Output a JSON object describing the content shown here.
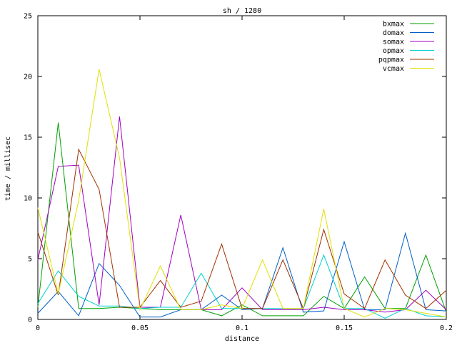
{
  "chart_data": {
    "type": "line",
    "title": "sh / 1280",
    "xlabel": "distance",
    "ylabel": "time / millisec",
    "xlim": [
      0,
      0.2
    ],
    "ylim": [
      0,
      25
    ],
    "xticks": [
      0,
      0.05,
      0.1,
      0.15,
      0.2
    ],
    "xtick_labels": [
      "0",
      "0.05",
      "0.1",
      "0.15",
      "0.2"
    ],
    "yticks": [
      0,
      5,
      10,
      15,
      20,
      25
    ],
    "ytick_labels": [
      "0",
      "5",
      "10",
      "15",
      "20",
      "25"
    ],
    "grid": false,
    "legend_position": "top-right",
    "x": [
      0,
      0.01,
      0.02,
      0.03,
      0.04,
      0.05,
      0.06,
      0.07,
      0.08,
      0.09,
      0.1,
      0.11,
      0.12,
      0.13,
      0.14,
      0.15,
      0.16,
      0.17,
      0.18,
      0.19,
      0.2
    ],
    "series": [
      {
        "name": "bxmax",
        "color": "#00a000",
        "values": [
          1.0,
          16.2,
          0.9,
          0.9,
          1.0,
          0.9,
          0.8,
          0.8,
          0.8,
          0.3,
          1.2,
          0.3,
          0.3,
          0.3,
          1.9,
          0.9,
          3.5,
          0.9,
          0.9,
          5.3,
          0.6
        ]
      },
      {
        "name": "domax",
        "color": "#0060c8",
        "values": [
          0.5,
          2.3,
          0.3,
          4.6,
          2.8,
          0.2,
          0.2,
          0.8,
          0.8,
          2.0,
          0.8,
          0.9,
          5.9,
          0.6,
          0.7,
          6.4,
          0.8,
          0.8,
          7.1,
          0.8,
          0.7
        ]
      },
      {
        "name": "somax",
        "color": "#a000c0",
        "values": [
          4.9,
          12.6,
          12.7,
          1.2,
          16.7,
          1.0,
          1.0,
          8.6,
          0.8,
          0.8,
          2.6,
          0.8,
          0.8,
          0.8,
          1.0,
          0.8,
          0.8,
          0.6,
          0.8,
          2.4,
          0.8
        ]
      },
      {
        "name": "opmax",
        "color": "#00d0d0",
        "values": [
          1.3,
          4.0,
          1.9,
          1.1,
          1.1,
          0.9,
          1.0,
          1.0,
          3.8,
          0.9,
          0.9,
          0.9,
          0.9,
          0.9,
          5.3,
          0.9,
          0.9,
          0.1,
          0.9,
          0.3,
          0.2
        ]
      },
      {
        "name": "pqpmax",
        "color": "#a03000",
        "values": [
          7.2,
          2.0,
          14.0,
          10.7,
          1.0,
          1.0,
          3.2,
          1.0,
          1.5,
          6.2,
          0.9,
          0.9,
          4.9,
          0.9,
          7.4,
          2.1,
          0.9,
          4.9,
          2.0,
          0.9,
          2.4
        ]
      },
      {
        "name": "vcmax",
        "color": "#e0e000",
        "values": [
          9.2,
          2.1,
          9.8,
          20.6,
          13.3,
          0.8,
          4.4,
          0.8,
          0.8,
          1.2,
          0.9,
          4.9,
          0.9,
          0.9,
          9.1,
          0.9,
          0.2,
          0.9,
          0.8,
          0.5,
          0.2
        ]
      }
    ]
  }
}
